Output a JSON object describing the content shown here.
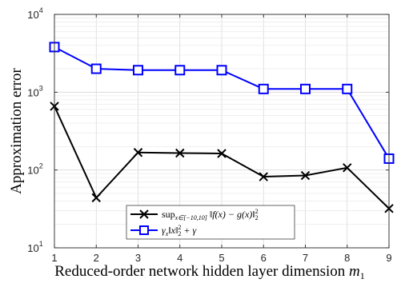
{
  "chart_data": {
    "type": "line",
    "x": [
      1,
      2,
      3,
      4,
      5,
      6,
      7,
      8,
      9
    ],
    "xlabel": "Reduced-order network hidden layer dimension",
    "xlabel_math": "m",
    "xlabel_math_sub": "1",
    "ylabel": "Approximation error",
    "yscale": "log",
    "xlim": [
      1,
      9
    ],
    "ylim": [
      10,
      10000
    ],
    "grid": true,
    "legend_position": "bottom-right",
    "xticks": [
      "1",
      "2",
      "3",
      "4",
      "5",
      "6",
      "7",
      "8",
      "9"
    ],
    "yticks": [
      {
        "base": "10",
        "exp": "1",
        "value": 10
      },
      {
        "base": "10",
        "exp": "2",
        "value": 100
      },
      {
        "base": "10",
        "exp": "3",
        "value": 1000
      },
      {
        "base": "10",
        "exp": "4",
        "value": 10000
      }
    ],
    "series": [
      {
        "name": "sup_{x∈[−10,10]} ‖f(x) − g(x)‖²₂",
        "name_parts": {
          "op": "sup",
          "sub": "x∈[−10,10]",
          "body": " ‖f(x) − g(x)‖",
          "sup": "2",
          "sub2": "2"
        },
        "color": "#000000",
        "marker": "x",
        "values": [
          660,
          44,
          168,
          165,
          163,
          82,
          85,
          107,
          32
        ]
      },
      {
        "name": "γ_x‖x‖²₂ + γ",
        "name_parts": {
          "g": "γ",
          "gsub": "x",
          "body": "‖x‖",
          "sup": "2",
          "sub2": "2",
          "tail": " + γ"
        },
        "color": "#0000ff",
        "marker": "square",
        "values": [
          3800,
          2000,
          1920,
          1920,
          1920,
          1100,
          1100,
          1100,
          140
        ]
      }
    ]
  }
}
